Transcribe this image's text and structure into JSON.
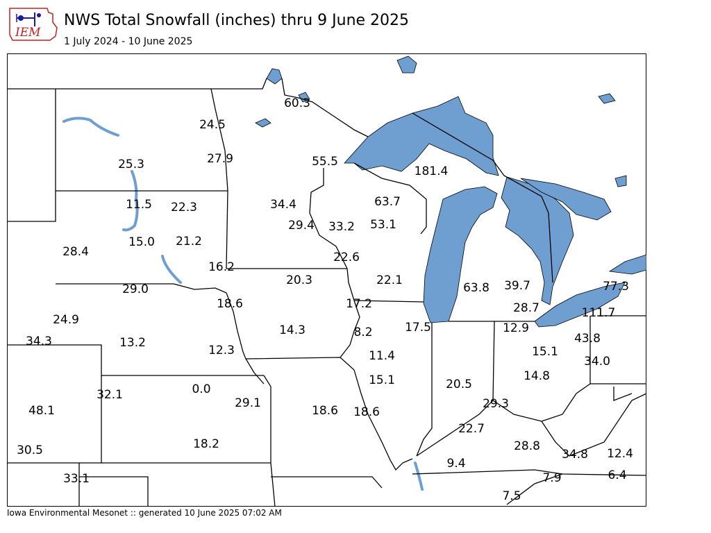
{
  "header": {
    "title": "NWS Total Snowfall (inches) thru 9 June 2025",
    "subtitle": "1 July 2024 - 10 June 2025",
    "logo_text": "IEM"
  },
  "footer": {
    "text": "Iowa Environmental Mesonet :: generated 10 June 2025 07:02 AM"
  },
  "colors": {
    "water": "#6f9ed1",
    "logo_red": "#c81e1e",
    "logo_blue": "#1a1aa0"
  },
  "observations": [
    {
      "label": "60.3"
    },
    {
      "label": "24.5"
    },
    {
      "label": "27.9"
    },
    {
      "label": "25.3"
    },
    {
      "label": "55.5"
    },
    {
      "label": "181.4"
    },
    {
      "label": "11.5"
    },
    {
      "label": "22.3"
    },
    {
      "label": "34.4"
    },
    {
      "label": "63.7"
    },
    {
      "label": "29.4"
    },
    {
      "label": "33.2"
    },
    {
      "label": "53.1"
    },
    {
      "label": "15.0"
    },
    {
      "label": "21.2"
    },
    {
      "label": "28.4"
    },
    {
      "label": "16.2"
    },
    {
      "label": "22.6"
    },
    {
      "label": "20.3"
    },
    {
      "label": "22.1"
    },
    {
      "label": "29.0"
    },
    {
      "label": "63.8"
    },
    {
      "label": "39.7"
    },
    {
      "label": "77.3"
    },
    {
      "label": "18.6"
    },
    {
      "label": "17.2"
    },
    {
      "label": "28.7"
    },
    {
      "label": "111.7"
    },
    {
      "label": "24.9"
    },
    {
      "label": "14.3"
    },
    {
      "label": "17.5"
    },
    {
      "label": "12.9"
    },
    {
      "label": "8.2"
    },
    {
      "label": "43.8"
    },
    {
      "label": "34.3"
    },
    {
      "label": "13.2"
    },
    {
      "label": "15.1"
    },
    {
      "label": "12.3"
    },
    {
      "label": "11.4"
    },
    {
      "label": "34.0"
    },
    {
      "label": "14.8"
    },
    {
      "label": "15.1"
    },
    {
      "label": "0.0"
    },
    {
      "label": "20.5"
    },
    {
      "label": "32.1"
    },
    {
      "label": "29.1"
    },
    {
      "label": "29.3"
    },
    {
      "label": "48.1"
    },
    {
      "label": "18.6"
    },
    {
      "label": "18.6"
    },
    {
      "label": "22.7"
    },
    {
      "label": "18.2"
    },
    {
      "label": "28.8"
    },
    {
      "label": "30.5"
    },
    {
      "label": "34.8"
    },
    {
      "label": "12.4"
    },
    {
      "label": "9.4"
    },
    {
      "label": "33.1"
    },
    {
      "label": "7.9"
    },
    {
      "label": "6.4"
    },
    {
      "label": "7.5"
    }
  ]
}
